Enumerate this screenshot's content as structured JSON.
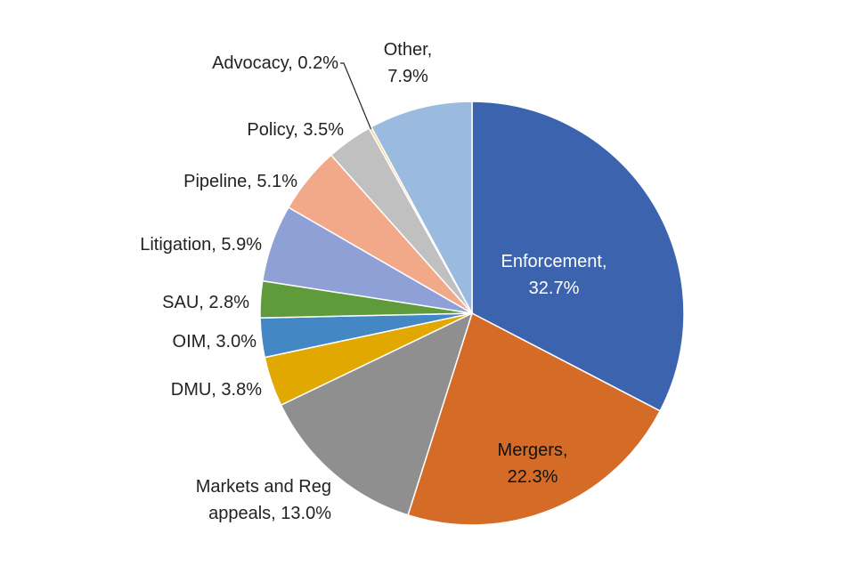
{
  "chart_data": {
    "type": "pie",
    "title": "",
    "start_angle_deg": 0,
    "direction": "clockwise",
    "slices": [
      {
        "category": "Enforcement",
        "value": 32.7,
        "value_label": "32.7%",
        "color": "#3b63ae"
      },
      {
        "category": "Mergers",
        "value": 22.3,
        "value_label": "22.3%",
        "color": "#d46c28"
      },
      {
        "category": "Markets and Reg appeals",
        "value": 13.0,
        "value_label": "13.0%",
        "color": "#8f8f8f"
      },
      {
        "category": "DMU",
        "value": 3.8,
        "value_label": "3.8%",
        "color": "#e0a800"
      },
      {
        "category": "OIM",
        "value": 3.0,
        "value_label": "3.0%",
        "color": "#4387c4"
      },
      {
        "category": "SAU",
        "value": 2.8,
        "value_label": "2.8%",
        "color": "#5f9a3b"
      },
      {
        "category": "Litigation",
        "value": 5.9,
        "value_label": "5.9%",
        "color": "#8fa0d6"
      },
      {
        "category": "Pipeline",
        "value": 5.1,
        "value_label": "5.1%",
        "color": "#f1a98a"
      },
      {
        "category": "Policy",
        "value": 3.5,
        "value_label": "3.5%",
        "color": "#c0c0c0"
      },
      {
        "category": "Advocacy",
        "value": 0.2,
        "value_label": "0.2%",
        "color": "#f6cf73"
      },
      {
        "category": "Other",
        "value": 7.9,
        "value_label": "7.9%",
        "color": "#9bbae0"
      }
    ],
    "labels": [
      {
        "lines": [
          "Enforcement,",
          "32.7%"
        ],
        "placement": "inside"
      },
      {
        "lines": [
          "Mergers,",
          "22.3%"
        ],
        "placement": "inside"
      },
      {
        "lines": [
          "Markets and Reg",
          "appeals, 13.0%"
        ],
        "placement": "outside"
      },
      {
        "lines": [
          "DMU, 3.8%"
        ],
        "placement": "outside"
      },
      {
        "lines": [
          "OIM, 3.0%"
        ],
        "placement": "outside"
      },
      {
        "lines": [
          "SAU, 2.8%"
        ],
        "placement": "outside"
      },
      {
        "lines": [
          "Litigation, 5.9%"
        ],
        "placement": "outside"
      },
      {
        "lines": [
          "Pipeline, 5.1%"
        ],
        "placement": "outside"
      },
      {
        "lines": [
          "Policy, 3.5%"
        ],
        "placement": "outside"
      },
      {
        "lines": [
          "Advocacy, 0.2%"
        ],
        "placement": "outside-leader"
      },
      {
        "lines": [
          "Other,",
          "7.9%"
        ],
        "placement": "outside"
      }
    ]
  }
}
